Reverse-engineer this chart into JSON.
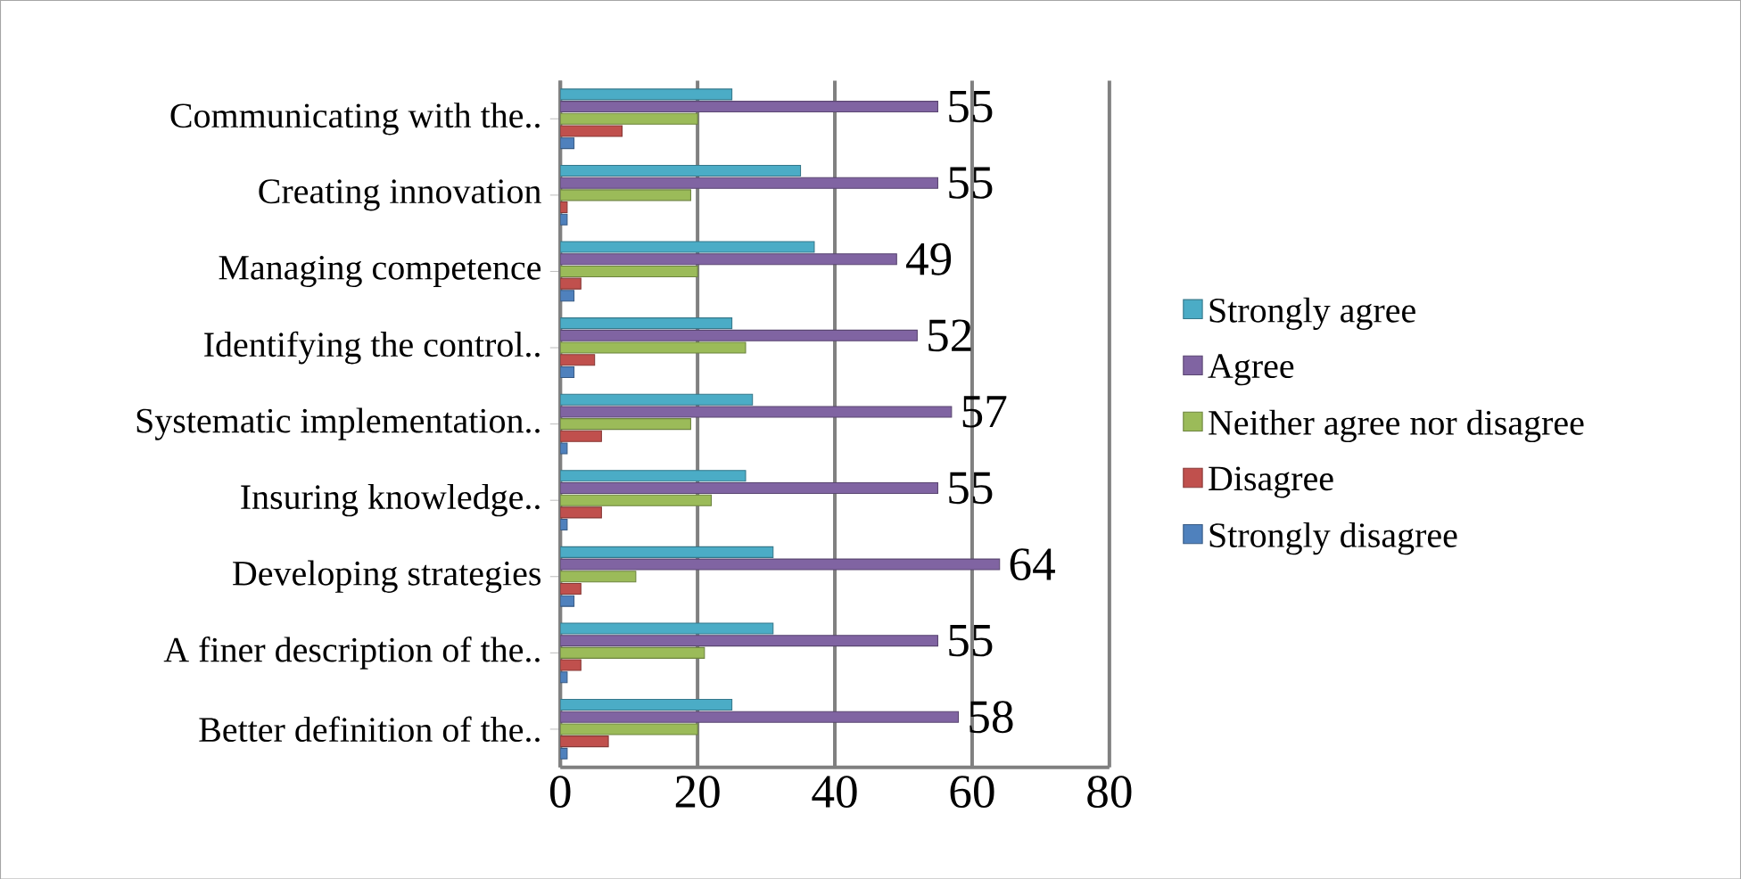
{
  "chart_data": {
    "type": "bar",
    "orientation": "horizontal",
    "categories": [
      "Communicating with the..",
      "Creating innovation",
      "Managing competence",
      "Identifying the control..",
      "Systematic implementation..",
      "Insuring knowledge..",
      "Developing strategies",
      "A finer description of the..",
      "Better definition of the.."
    ],
    "series": [
      {
        "name": "Strongly agree",
        "color": "#4bacc6",
        "values": [
          25,
          35,
          37,
          25,
          28,
          27,
          31,
          31,
          25
        ]
      },
      {
        "name": "Agree",
        "color": "#8064a2",
        "values": [
          55,
          55,
          49,
          52,
          57,
          55,
          64,
          55,
          58
        ],
        "value_labels": [
          "55",
          "55",
          "49",
          "52",
          "57",
          "55",
          "64",
          "55",
          "58"
        ]
      },
      {
        "name": "Neither agree nor disagree",
        "color": "#9bbb59",
        "values": [
          20,
          19,
          20,
          27,
          19,
          22,
          11,
          21,
          20
        ]
      },
      {
        "name": "Disagree",
        "color": "#c0504d",
        "values": [
          9,
          1,
          3,
          5,
          6,
          6,
          3,
          3,
          7
        ]
      },
      {
        "name": "Strongly disagree",
        "color": "#4f81bd",
        "values": [
          2,
          1,
          2,
          2,
          1,
          1,
          2,
          1,
          1
        ]
      }
    ],
    "xlim": [
      0,
      80
    ],
    "xticks": [
      0,
      20,
      40,
      60,
      80
    ],
    "grid": "x",
    "legend": "right"
  }
}
